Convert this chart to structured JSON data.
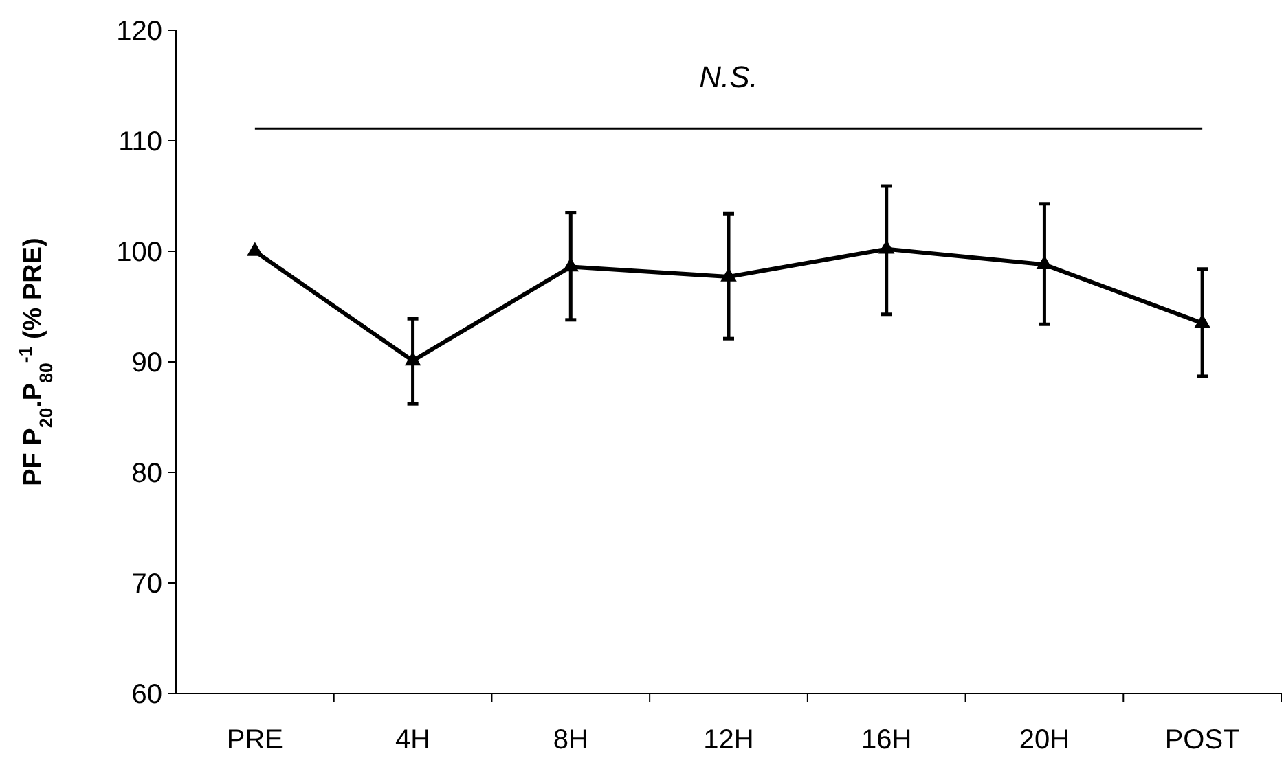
{
  "chart_data": {
    "type": "line",
    "ylabel": "PF P$_{20}$.P$_{80}$$^{-1}$ (% PRE)",
    "categories": [
      "PRE",
      "4H",
      "8H",
      "12H",
      "16H",
      "20H",
      "POST"
    ],
    "series": [
      {
        "color": "#000000",
        "values": [
          100,
          90.1,
          98.6,
          97.7,
          100.2,
          98.8,
          93.5
        ],
        "errors": [
          null,
          [
            86.2,
            93.9
          ],
          [
            93.8,
            103.5
          ],
          [
            92.1,
            103.4
          ],
          [
            94.3,
            105.9
          ],
          [
            93.4,
            104.3
          ],
          [
            88.7,
            98.4
          ]
        ]
      }
    ],
    "ylim": [
      60,
      120
    ],
    "yticks": [
      60,
      70,
      80,
      90,
      100,
      110,
      120
    ],
    "ref_lines": [
      {
        "axis": "y",
        "value": 111.1,
        "label": "N.S.",
        "color": "#000000"
      }
    ],
    "marker": "triangle",
    "line_style": "solid"
  }
}
